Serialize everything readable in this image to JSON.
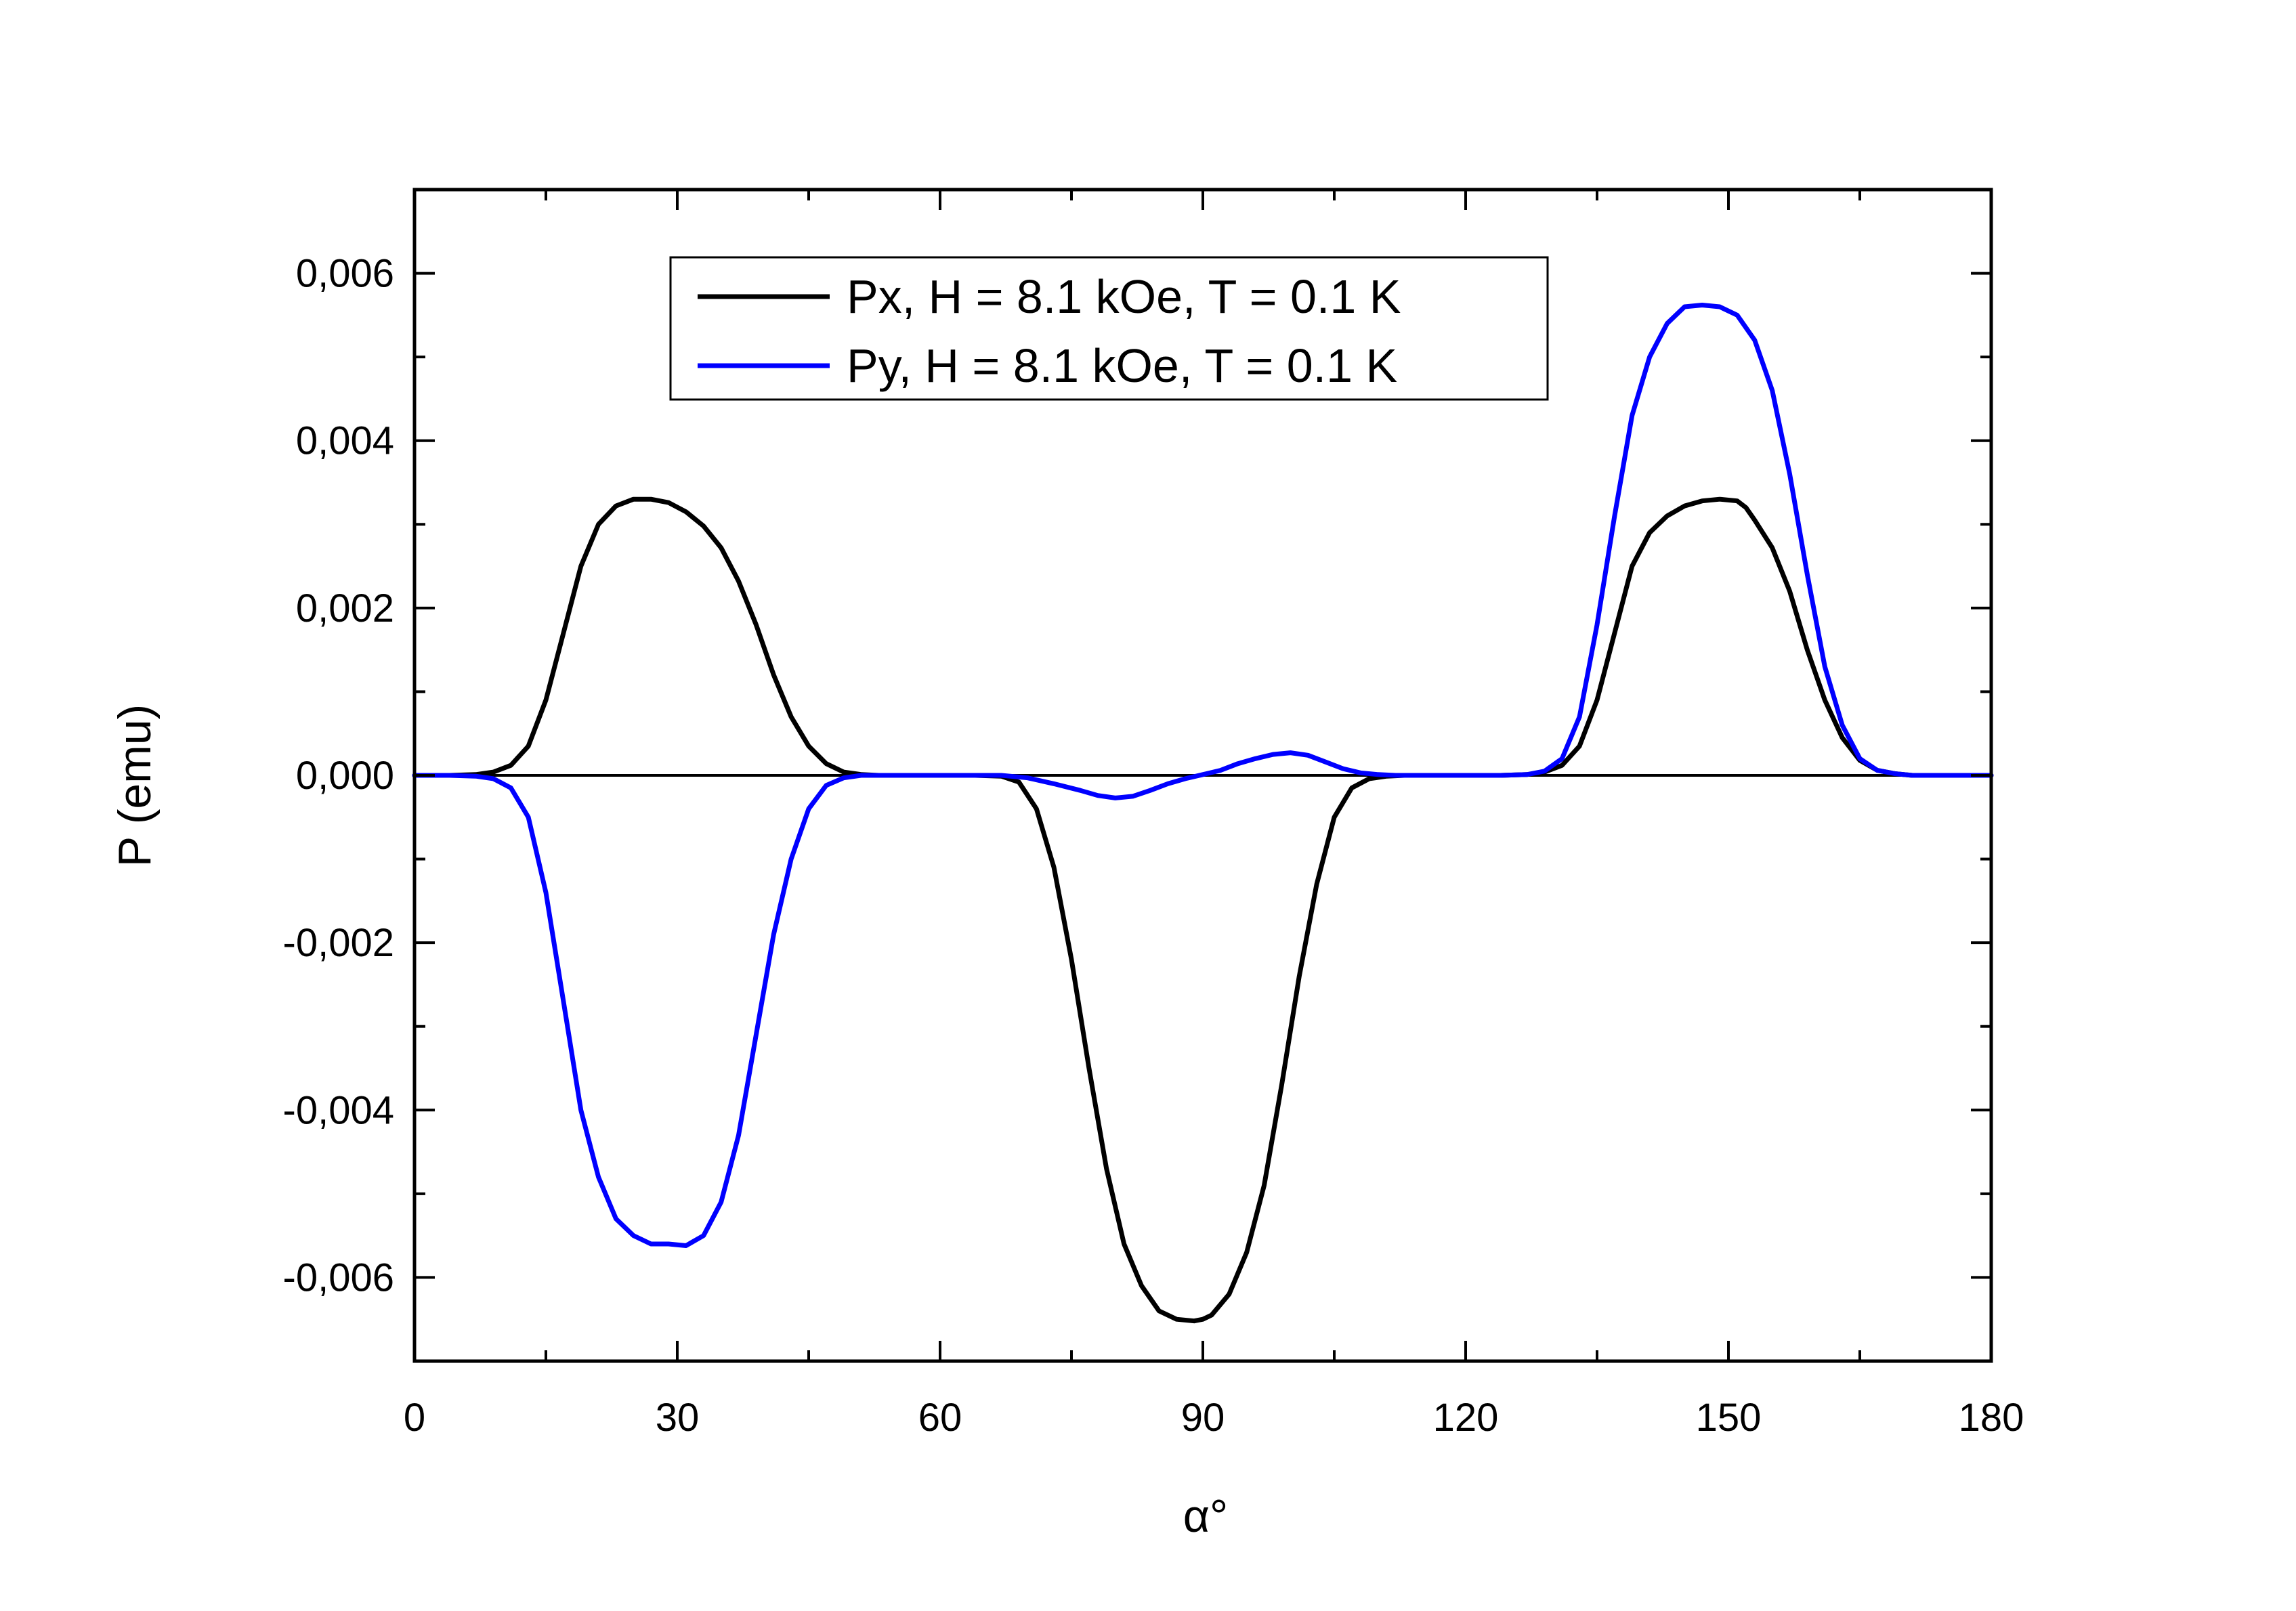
{
  "colors": {
    "px_series": "#000000",
    "py_series": "#0000ff",
    "axis": "#000000",
    "background": "#ffffff"
  },
  "chart_data": {
    "type": "line",
    "title": "",
    "xlabel": "α°",
    "ylabel": "P (emu)",
    "xlim": [
      0,
      180
    ],
    "ylim": [
      -0.007,
      0.007
    ],
    "xticks": [
      0,
      30,
      60,
      90,
      120,
      150,
      180
    ],
    "xtick_labels": [
      "0",
      "30",
      "60",
      "90",
      "120",
      "150",
      "180"
    ],
    "yticks": [
      -0.006,
      -0.004,
      -0.002,
      0.0,
      0.002,
      0.004,
      0.006
    ],
    "ytick_labels": [
      "-0,006",
      "-0,004",
      "-0,002",
      "0,000",
      "0,002",
      "0,004",
      "0,006"
    ],
    "grid": false,
    "legend_position": "top-center",
    "zero_line": true,
    "series": [
      {
        "name": "Px, H = 8.1 kOe, T = 0.1 K",
        "color": "#000000",
        "x": [
          0,
          4,
          7,
          9,
          11,
          13,
          15,
          17,
          19,
          21,
          23,
          25,
          27,
          29,
          31,
          33,
          35,
          37,
          39,
          41,
          43,
          45,
          47,
          49,
          51,
          53,
          56,
          60,
          64,
          67,
          69,
          71,
          73,
          75,
          77,
          79,
          81,
          83,
          85,
          87,
          89,
          90,
          91,
          93,
          95,
          97,
          99,
          101,
          103,
          105,
          107,
          109,
          111,
          113,
          116,
          120,
          124,
          127,
          129,
          131,
          133,
          135,
          137,
          139,
          141,
          143,
          145,
          147,
          149,
          151,
          152,
          153,
          155,
          157,
          159,
          161,
          163,
          165,
          167,
          169,
          171,
          173,
          176,
          180
        ],
        "y": [
          0,
          0,
          1e-05,
          4e-05,
          0.00012,
          0.00035,
          0.0009,
          0.0017,
          0.0025,
          0.003,
          0.00322,
          0.0033,
          0.0033,
          0.00326,
          0.00315,
          0.00298,
          0.00272,
          0.00232,
          0.0018,
          0.0012,
          0.0007,
          0.00035,
          0.00014,
          4e-05,
          1e-05,
          0,
          0,
          0,
          0,
          -1e-05,
          -8e-05,
          -0.0004,
          -0.0011,
          -0.0022,
          -0.0035,
          -0.0047,
          -0.0056,
          -0.0061,
          -0.0064,
          -0.0065,
          -0.00652,
          -0.0065,
          -0.00645,
          -0.0062,
          -0.0057,
          -0.0049,
          -0.0037,
          -0.0024,
          -0.0013,
          -0.0005,
          -0.00015,
          -4e-05,
          -1e-05,
          0,
          0,
          0,
          0,
          1e-05,
          4e-05,
          0.00012,
          0.00035,
          0.0009,
          0.0017,
          0.0025,
          0.0029,
          0.0031,
          0.00322,
          0.00328,
          0.0033,
          0.00328,
          0.0032,
          0.00305,
          0.00272,
          0.0022,
          0.0015,
          0.0009,
          0.00045,
          0.00018,
          6e-05,
          2e-05,
          0,
          0,
          0,
          0
        ]
      },
      {
        "name": "Py, H = 8.1 kOe, T = 0.1 K",
        "color": "#0000ff",
        "x": [
          0,
          4,
          7,
          9,
          11,
          13,
          15,
          17,
          19,
          21,
          23,
          25,
          27,
          29,
          31,
          33,
          35,
          37,
          39,
          41,
          43,
          45,
          47,
          49,
          51,
          53,
          56,
          60,
          64,
          67,
          70,
          73,
          76,
          78,
          80,
          82,
          84,
          86,
          88,
          90,
          92,
          94,
          96,
          98,
          100,
          102,
          104,
          106,
          108,
          110,
          112,
          115,
          120,
          124,
          127,
          129,
          131,
          133,
          135,
          137,
          139,
          141,
          143,
          145,
          147,
          149,
          151,
          153,
          155,
          157,
          159,
          161,
          163,
          165,
          167,
          169,
          171,
          173,
          176,
          180
        ],
        "y": [
          0,
          0,
          -1e-05,
          -4e-05,
          -0.00015,
          -0.0005,
          -0.0014,
          -0.0027,
          -0.004,
          -0.0048,
          -0.0053,
          -0.0055,
          -0.0056,
          -0.0056,
          -0.00562,
          -0.0055,
          -0.0051,
          -0.0043,
          -0.0031,
          -0.0019,
          -0.001,
          -0.0004,
          -0.00012,
          -3e-05,
          0,
          0,
          0,
          0,
          0,
          0,
          -3e-05,
          -0.0001,
          -0.00018,
          -0.00024,
          -0.00027,
          -0.00025,
          -0.00018,
          -0.0001,
          -4e-05,
          1e-05,
          6e-05,
          0.00014,
          0.0002,
          0.00025,
          0.00027,
          0.00024,
          0.00016,
          8e-05,
          3e-05,
          1e-05,
          0,
          0,
          0,
          0,
          1e-05,
          5e-05,
          0.0002,
          0.0007,
          0.0018,
          0.0031,
          0.0043,
          0.005,
          0.0054,
          0.0056,
          0.00562,
          0.0056,
          0.0055,
          0.0052,
          0.0046,
          0.0036,
          0.0024,
          0.0013,
          0.0006,
          0.0002,
          6e-05,
          2e-05,
          0,
          0,
          0,
          0
        ]
      }
    ]
  }
}
